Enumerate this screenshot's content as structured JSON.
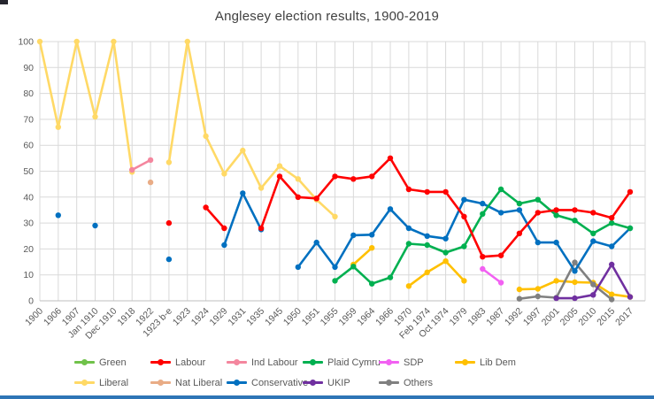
{
  "chart_data": {
    "type": "line",
    "title": "Anglesey election results, 1900-2019",
    "xlabel": "",
    "ylabel": "",
    "ylim": [
      0,
      100
    ],
    "y_ticks": [
      0,
      10,
      20,
      30,
      40,
      50,
      60,
      70,
      80,
      90,
      100
    ],
    "grid": true,
    "legend_position": "bottom",
    "categories": [
      "1900",
      "1906",
      "1907",
      "Jan 1910",
      "Dec 1910",
      "1918",
      "1922",
      "1923 b-e",
      "1923",
      "1924",
      "1929",
      "1931",
      "1935",
      "1945",
      "1950",
      "1951",
      "1955",
      "1959",
      "1964",
      "1966",
      "1970",
      "Feb 1974",
      "Oct 1974",
      "1979",
      "1983",
      "1987",
      "1992",
      "1997",
      "2001",
      "2005",
      "2010",
      "2015",
      "2017"
    ],
    "series": [
      {
        "name": "Green",
        "color": "#70c24a",
        "values": [
          null,
          null,
          null,
          null,
          null,
          null,
          null,
          null,
          null,
          null,
          null,
          null,
          null,
          null,
          null,
          null,
          null,
          null,
          null,
          null,
          null,
          null,
          null,
          null,
          null,
          null,
          null,
          null,
          null,
          null,
          null,
          null,
          null
        ]
      },
      {
        "name": "Labour",
        "color": "#ff0000",
        "values": [
          null,
          null,
          null,
          null,
          null,
          null,
          null,
          30,
          null,
          36,
          28,
          null,
          28,
          48,
          40,
          39.5,
          48,
          47,
          48,
          55,
          43,
          42,
          42,
          32.5,
          17,
          17.5,
          26,
          34,
          35,
          35,
          34,
          32,
          42
        ]
      },
      {
        "name": "Ind Labour",
        "color": "#f4869e",
        "values": [
          null,
          null,
          null,
          null,
          null,
          50.5,
          54.3,
          null,
          null,
          null,
          null,
          null,
          null,
          null,
          null,
          null,
          null,
          null,
          null,
          null,
          null,
          null,
          null,
          null,
          null,
          null,
          null,
          null,
          null,
          null,
          null,
          null,
          null
        ]
      },
      {
        "name": "Plaid Cymru",
        "color": "#00b050",
        "values": [
          null,
          null,
          null,
          null,
          null,
          null,
          null,
          null,
          null,
          null,
          null,
          null,
          null,
          null,
          null,
          null,
          7.7,
          13.2,
          6.6,
          9,
          22,
          21.5,
          18.6,
          21,
          33.5,
          43,
          37.5,
          39,
          33,
          31,
          26,
          30,
          28
        ]
      },
      {
        "name": "SDP",
        "color": "#f261f2",
        "values": [
          null,
          null,
          null,
          null,
          null,
          null,
          null,
          null,
          null,
          null,
          null,
          null,
          null,
          null,
          null,
          null,
          null,
          null,
          null,
          null,
          null,
          null,
          null,
          null,
          12.3,
          7,
          null,
          null,
          null,
          null,
          null,
          null,
          null
        ]
      },
      {
        "name": "Lib Dem",
        "color": "#ffc000",
        "values": [
          null,
          null,
          null,
          null,
          null,
          null,
          null,
          null,
          null,
          null,
          null,
          null,
          null,
          null,
          null,
          null,
          null,
          14,
          20.4,
          null,
          5.7,
          11,
          15.3,
          7.7,
          null,
          null,
          4.4,
          4.6,
          7.7,
          7.2,
          7,
          2.5,
          1.5
        ]
      },
      {
        "name": "Liberal",
        "color": "#ffd966",
        "values": [
          100,
          67,
          100,
          71,
          100,
          49.7,
          null,
          53.4,
          100,
          63.5,
          49,
          58,
          43.5,
          52,
          47,
          39,
          32.5,
          null,
          null,
          null,
          null,
          null,
          null,
          null,
          null,
          null,
          null,
          null,
          null,
          null,
          null,
          null,
          null
        ]
      },
      {
        "name": "Nat Liberal",
        "color": "#e9ac86",
        "values": [
          null,
          null,
          null,
          null,
          null,
          null,
          45.7,
          null,
          null,
          null,
          null,
          null,
          null,
          null,
          null,
          null,
          null,
          null,
          null,
          null,
          null,
          null,
          null,
          null,
          null,
          null,
          null,
          null,
          null,
          null,
          null,
          null,
          null
        ]
      },
      {
        "name": "Conservative",
        "color": "#0070c0",
        "values": [
          null,
          33,
          null,
          29,
          null,
          null,
          null,
          16,
          null,
          null,
          21.5,
          41.5,
          27.5,
          null,
          13,
          22.5,
          13,
          25.3,
          25.5,
          35.4,
          28,
          25,
          24,
          39,
          37.5,
          34,
          35,
          22.5,
          22.5,
          11.5,
          23,
          21,
          28
        ]
      },
      {
        "name": "UKIP",
        "color": "#7030a0",
        "values": [
          null,
          null,
          null,
          null,
          null,
          null,
          null,
          null,
          null,
          null,
          null,
          null,
          null,
          null,
          null,
          null,
          null,
          null,
          null,
          null,
          null,
          null,
          null,
          null,
          null,
          null,
          null,
          null,
          1,
          1,
          2.3,
          14,
          1.5
        ]
      },
      {
        "name": "Others",
        "color": "#808080",
        "values": [
          null,
          null,
          null,
          null,
          null,
          null,
          null,
          null,
          null,
          null,
          null,
          null,
          null,
          null,
          null,
          null,
          null,
          null,
          null,
          null,
          null,
          null,
          null,
          null,
          null,
          null,
          0.8,
          1.7,
          1.2,
          14.8,
          6.3,
          0.5,
          null
        ]
      }
    ],
    "legend_rows": [
      [
        "Green",
        "Labour",
        "Ind Labour",
        "Plaid Cymru",
        "SDP",
        "Lib Dem"
      ],
      [
        "Liberal",
        "Nat Liberal",
        "Conservative",
        "UKIP",
        "Others"
      ]
    ]
  },
  "colors": {
    "background": "#ffffff",
    "gridline": "#d9d9d9",
    "axis_line": "#bfbfbf",
    "title_text": "#404040",
    "axis_text": "#595959",
    "legend_text": "#595959",
    "bottom_bar": "#2e75b6",
    "corner_artifact": "#26262e"
  }
}
